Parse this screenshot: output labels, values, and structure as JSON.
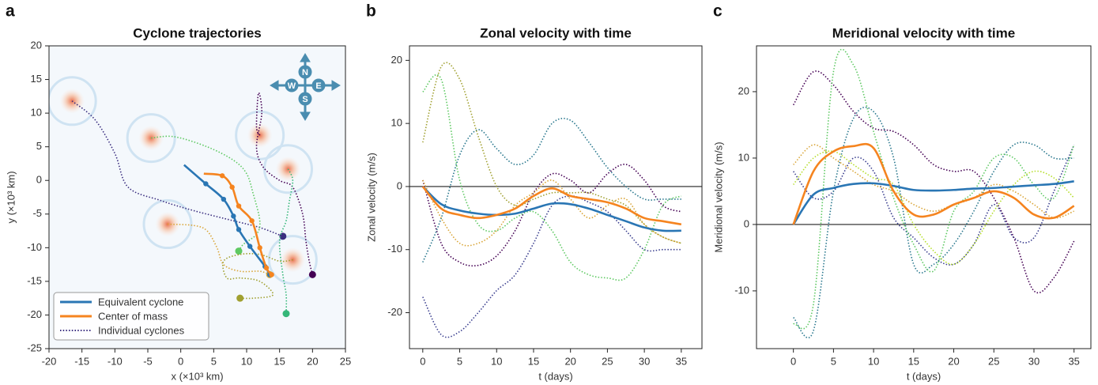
{
  "chart_data": [
    {
      "type": "trajectory",
      "panel_label": "a",
      "title": "Cyclone trajectories",
      "x_label": "x (×10³ km)",
      "y_label": "y (×10³ km)",
      "xlim": [
        -20,
        25
      ],
      "ylim": [
        -25,
        20
      ],
      "xticks": [
        -20,
        -15,
        -10,
        -5,
        0,
        5,
        10,
        15,
        20,
        25
      ],
      "yticks": [
        -25,
        -20,
        -15,
        -10,
        -5,
        0,
        5,
        10,
        15,
        20
      ],
      "compass": [
        "N",
        "E",
        "S",
        "W"
      ],
      "series": [
        {
          "name": "Equivalent cyclone",
          "color": "#2a76b4",
          "x": [
            0.5,
            3.8,
            6.5,
            8.0,
            8.8,
            10.5,
            12.8,
            13.5
          ],
          "y": [
            2.3,
            -0.5,
            -2.8,
            -5.3,
            -7.3,
            -9.8,
            -12.8,
            -14.0
          ]
        },
        {
          "name": "Center of mass",
          "color": "#f5841f",
          "x": [
            3.5,
            6.3,
            7.8,
            8.8,
            10.8,
            12.0,
            13.0,
            13.8
          ],
          "y": [
            1.0,
            0.7,
            -1.0,
            -3.8,
            -6.0,
            -10.0,
            -13.0,
            -14.0
          ]
        }
      ],
      "individual": {
        "name": "Individual cyclones",
        "tracks": [
          {
            "color": "#3b2e80",
            "x": [
              -16.5,
              -13,
              -10,
              -8,
              -3,
              2,
              8,
              12,
              15.5
            ],
            "y": [
              11.8,
              9,
              4,
              -1,
              -3,
              -4.5,
              -6,
              -7,
              -8.3
            ]
          },
          {
            "color": "#5ec962",
            "x": [
              -4.5,
              -1,
              4,
              8,
              10,
              11,
              12,
              11.5,
              9.5,
              8.8
            ],
            "y": [
              6.3,
              6.5,
              5,
              3,
              1,
              -2,
              -6,
              -8,
              -9.5,
              -10.5
            ]
          },
          {
            "color": "#440154",
            "x": [
              12,
              11.5,
              11.8,
              12.3,
              11.5,
              12.5,
              15,
              17,
              18.5,
              19,
              19.5,
              20
            ],
            "y": [
              6.7,
              8,
              13,
              10,
              5,
              2,
              0,
              -1,
              -5,
              -9,
              -12,
              -14
            ]
          },
          {
            "color": "#35b779",
            "x": [
              16.3,
              17,
              16.5,
              16,
              15,
              15.5,
              16,
              16
            ],
            "y": [
              1.7,
              0,
              -3,
              -6,
              -9,
              -14,
              -17,
              -19.8
            ]
          },
          {
            "color": "#d9a537",
            "x": [
              -2,
              2,
              4,
              5.5,
              6.5,
              9,
              12,
              13.5
            ],
            "y": [
              -6.5,
              -6.7,
              -7.5,
              -10,
              -12.5,
              -13.5,
              -13.5,
              -14
            ]
          },
          {
            "color": "#a0a030",
            "x": [
              17,
              15,
              12,
              9,
              6.5,
              7,
              9,
              12,
              14,
              11,
              9
            ],
            "y": [
              -11.8,
              -12,
              -11,
              -11,
              -12,
              -14.5,
              -14.5,
              -15,
              -17,
              -17.5,
              -17.5
            ]
          }
        ]
      }
    },
    {
      "type": "line",
      "panel_label": "b",
      "title": "Zonal velocity with time",
      "x_label": "t (days)",
      "y_label": "Zonal velocity  (m/s)",
      "xlim": [
        -1.8,
        37.8
      ],
      "ylim": [
        -25.7,
        22.3
      ],
      "xticks": [
        0,
        5,
        10,
        15,
        20,
        25,
        30,
        35
      ],
      "yticks": [
        -20,
        -10,
        0,
        10,
        20
      ],
      "x": [
        0,
        2.5,
        5,
        7.5,
        10,
        12.5,
        15,
        17.5,
        20,
        22.5,
        25,
        27.5,
        30,
        32.5,
        35
      ],
      "series": [
        {
          "color": "#2a76b4",
          "values": [
            0,
            -2.8,
            -3.8,
            -4.3,
            -4.5,
            -4.3,
            -3.5,
            -2.7,
            -2.8,
            -3.5,
            -4.5,
            -5.5,
            -6.5,
            -7,
            -7
          ]
        },
        {
          "color": "#f5841f",
          "values": [
            0,
            -3.5,
            -4.5,
            -5,
            -4.5,
            -3.5,
            -1.5,
            -0.3,
            -1.5,
            -2,
            -2.5,
            -3.5,
            -5,
            -5.5,
            -6
          ]
        }
      ],
      "individual": {
        "tracks": [
          {
            "color": "#440154",
            "values": [
              1,
              -9,
              -12,
              -12.5,
              -11,
              -7,
              -1,
              2,
              1,
              -1,
              2,
              3.5,
              1,
              -3,
              -4
            ]
          },
          {
            "color": "#3b3f8f",
            "values": [
              -17.5,
              -23.5,
              -23,
              -20,
              -16.5,
              -14,
              -9,
              -3,
              -1.5,
              -2.5,
              -4,
              -7,
              -10,
              -10,
              -10
            ]
          },
          {
            "color": "#2a788e",
            "values": [
              -12,
              -5,
              5,
              9,
              6,
              3.5,
              5,
              10,
              10.5,
              7,
              3,
              0,
              -2,
              -2,
              -2
            ]
          },
          {
            "color": "#5ec962",
            "values": [
              15,
              17,
              1,
              -6,
              -7,
              -5,
              -4,
              -7,
              -12,
              -14,
              -14.5,
              -14.5,
              -10,
              -3,
              -1.5
            ]
          },
          {
            "color": "#a0a030",
            "values": [
              7,
              19,
              17,
              8,
              0,
              -3,
              -2,
              -1,
              -1,
              -1,
              -2,
              -3,
              -6,
              -8,
              -9
            ]
          },
          {
            "color": "#d9a537",
            "values": [
              1,
              -5,
              -9,
              -9,
              -7,
              -3,
              -1,
              1,
              -2,
              -5,
              -3,
              -2,
              -6,
              -8,
              -9
            ]
          }
        ]
      }
    },
    {
      "type": "line",
      "panel_label": "c",
      "title": "Meridional velocity with time",
      "x_label": "t (days)",
      "y_label": "Meridional velocity  (m/s)",
      "xlim": [
        -4.6,
        37.1
      ],
      "ylim": [
        -18.7,
        26.9
      ],
      "xticks": [
        0,
        5,
        10,
        15,
        20,
        25,
        30,
        35
      ],
      "yticks": [
        -10,
        0,
        10,
        20
      ],
      "x": [
        0,
        2.5,
        5,
        7.5,
        10,
        12.5,
        15,
        17.5,
        20,
        22.5,
        25,
        27.5,
        30,
        32.5,
        35
      ],
      "series": [
        {
          "color": "#2a76b4",
          "values": [
            0,
            4.5,
            5.5,
            6.1,
            6.2,
            5.8,
            5.2,
            5.1,
            5.2,
            5.4,
            5.5,
            5.7,
            5.9,
            6.1,
            6.5
          ]
        },
        {
          "color": "#f5841f",
          "values": [
            0,
            8,
            11,
            11.8,
            11.5,
            5,
            1.5,
            1.5,
            3,
            4,
            5,
            4,
            1.5,
            1,
            2.8
          ]
        }
      ],
      "individual": {
        "tracks": [
          {
            "color": "#440154",
            "values": [
              18,
              23,
              21,
              17,
              14.5,
              14,
              12,
              9,
              8,
              8,
              4,
              -2,
              -10,
              -8,
              -2.5
            ]
          },
          {
            "color": "#3b3f8f",
            "values": [
              8,
              4,
              5,
              10,
              8,
              1,
              -2,
              -5,
              -6,
              -3,
              3,
              -2,
              -2,
              5,
              12
            ]
          },
          {
            "color": "#2a788e",
            "values": [
              -14,
              -16,
              5,
              16,
              17,
              10,
              -6,
              -6,
              -3,
              2,
              8,
              12,
              12,
              10,
              10
            ]
          },
          {
            "color": "#5ec962",
            "values": [
              -15,
              -12,
              23,
              24,
              14,
              4,
              -3,
              -7,
              2,
              5,
              10,
              10,
              6,
              4,
              12
            ]
          },
          {
            "color": "#b5de2b",
            "values": [
              6,
              10,
              11,
              9,
              7,
              6,
              0,
              -4,
              -6,
              -3,
              2,
              6,
              8,
              7,
              4
            ]
          },
          {
            "color": "#d9a537",
            "values": [
              9,
              12,
              10,
              8,
              6,
              5,
              3,
              2,
              3,
              4,
              6,
              5,
              3,
              1,
              2
            ]
          }
        ]
      }
    }
  ]
}
